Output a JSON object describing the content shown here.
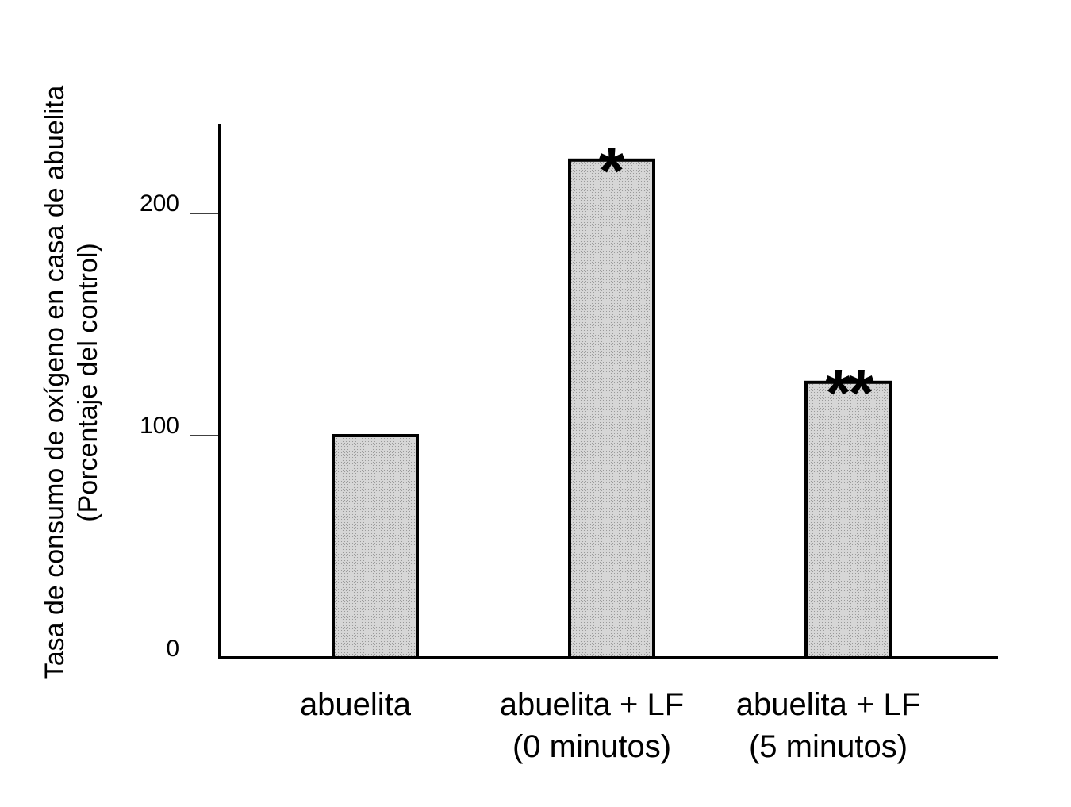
{
  "chart_data": {
    "type": "bar",
    "categories": [
      [
        "abuelita"
      ],
      [
        "abuelita + LF",
        "(0 minutos)"
      ],
      [
        "abuelita +  LF",
        "(5 minutos)"
      ]
    ],
    "values": [
      100,
      224,
      124
    ],
    "annotations": [
      "",
      "*",
      "**"
    ],
    "ylabel": [
      "Tasa de consumo de oxígeno en casa de abuelita",
      "(Porcentaje del control)"
    ],
    "xlabel": "",
    "title": "",
    "yticks": [
      0,
      100,
      200
    ],
    "ylim": [
      0,
      250
    ],
    "grid": false,
    "bar_fill": "#c8c8c8",
    "bar_stroke": "#000000"
  }
}
